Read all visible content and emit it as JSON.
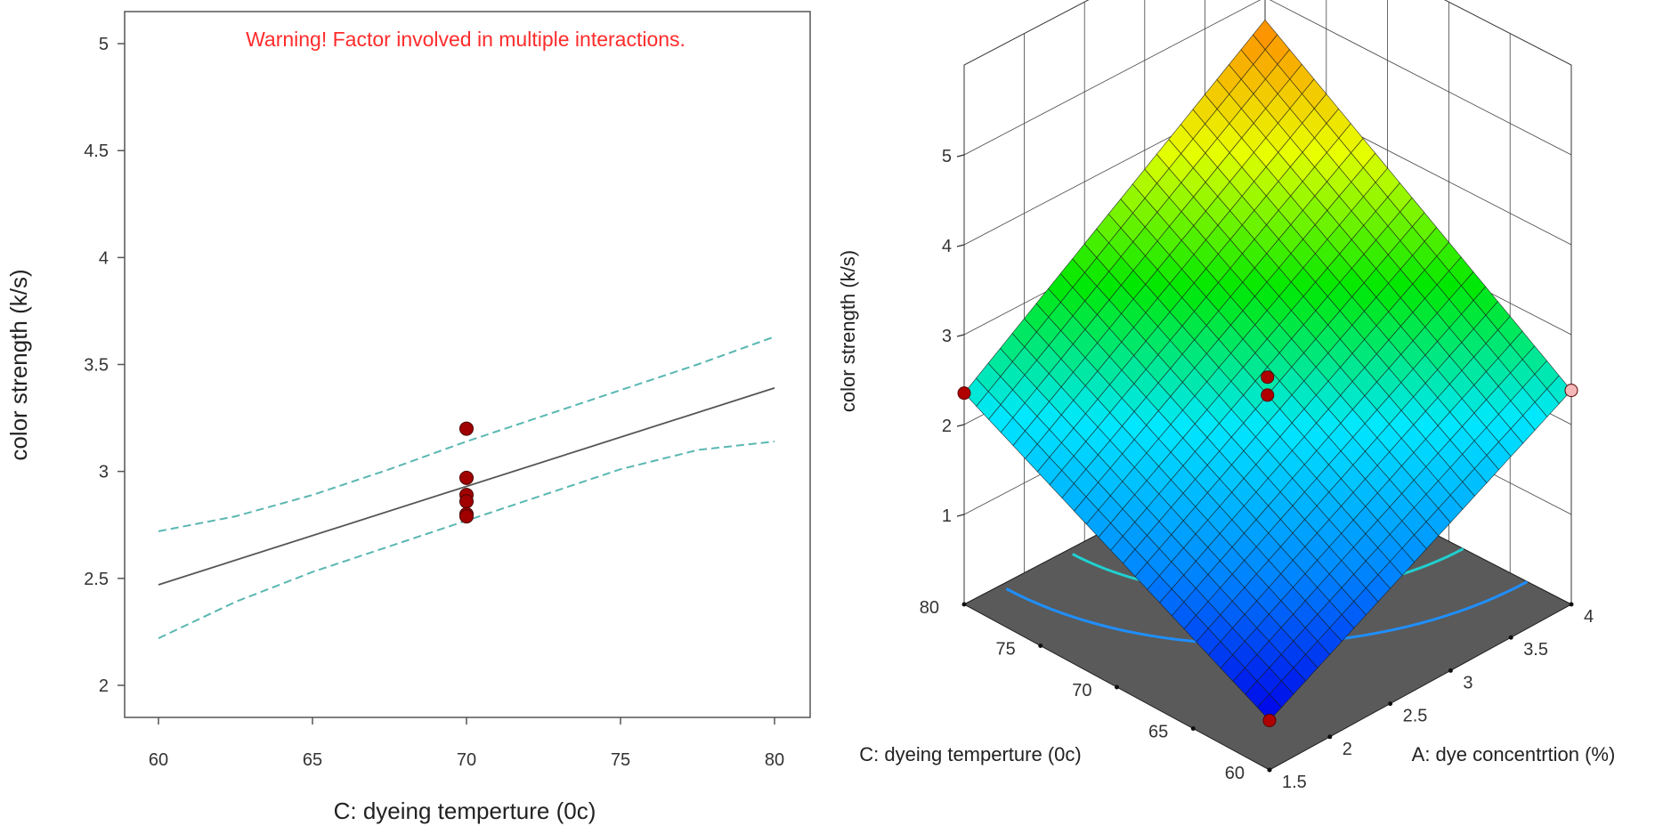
{
  "chart_data": [
    {
      "type": "line",
      "warning": "Warning! Factor involved in multiple interactions.",
      "xlabel": "C: dyeing temperture (0c)",
      "ylabel": "color strength (k/s)",
      "xlim": [
        60,
        80
      ],
      "ylim": [
        1.85,
        5.15
      ],
      "xticks": [
        "60",
        "65",
        "70",
        "75",
        "80"
      ],
      "yticks": [
        "2",
        "2.5",
        "3",
        "3.5",
        "4",
        "4.5",
        "5"
      ],
      "series": [
        {
          "role": "prediction",
          "x": [
            60,
            80
          ],
          "y": [
            2.47,
            3.39
          ],
          "style": "solid",
          "color": "#555555"
        },
        {
          "role": "upper-ci",
          "x": [
            60,
            62.5,
            65,
            67.5,
            70,
            72.5,
            75,
            77.5,
            80
          ],
          "y": [
            2.72,
            2.79,
            2.89,
            3.01,
            3.14,
            3.26,
            3.38,
            3.5,
            3.63
          ],
          "style": "dashed",
          "color": "#5ab7b2"
        },
        {
          "role": "lower-ci",
          "x": [
            60,
            62.5,
            65,
            67.5,
            70,
            72.5,
            75,
            77.5,
            80
          ],
          "y": [
            2.22,
            2.39,
            2.53,
            2.65,
            2.77,
            2.89,
            3.01,
            3.1,
            3.14
          ],
          "style": "dashed",
          "color": "#5ab7b2"
        }
      ],
      "points": {
        "x": [
          70,
          70,
          70,
          70,
          70,
          70
        ],
        "y": [
          3.2,
          2.97,
          2.89,
          2.86,
          2.8,
          2.79
        ],
        "color": "#a00000"
      },
      "grid": false
    },
    {
      "type": "surface",
      "zlabel": "color strength (k/s)",
      "xlabel": "A: dye concentrtion (%)",
      "ylabel": "C: dyeing temperture (0c)",
      "xlim": [
        1.5,
        4
      ],
      "ylim": [
        60,
        80
      ],
      "zlim": [
        0,
        5
      ],
      "xticks": [
        "1.5",
        "2",
        "2.5",
        "3",
        "3.5",
        "4"
      ],
      "yticks": [
        "60",
        "65",
        "70",
        "75",
        "80"
      ],
      "zticks": [
        "1",
        "2",
        "3",
        "4",
        "5"
      ],
      "surface_corners": [
        {
          "x": 1.5,
          "y": 60,
          "z": 0.55
        },
        {
          "x": 4,
          "y": 60,
          "z": 2.38
        },
        {
          "x": 4,
          "y": 80,
          "z": 4.75
        },
        {
          "x": 1.5,
          "y": 80,
          "z": 2.35
        }
      ],
      "points": [
        {
          "x": 2.75,
          "y": 70,
          "z": 2.55
        },
        {
          "x": 2.75,
          "y": 70,
          "z": 2.35
        },
        {
          "x": 1.5,
          "y": 80,
          "z": 2.35
        },
        {
          "x": 4,
          "y": 60,
          "z": 2.38
        },
        {
          "x": 1.5,
          "y": 60,
          "z": 0.55
        }
      ],
      "colormap": [
        "#0000e8",
        "#0088ff",
        "#00e8ff",
        "#00e800",
        "#e8ff00",
        "#ff8800"
      ],
      "contour_levels": [
        1.5,
        2.0,
        2.5,
        3.0
      ],
      "contour_colors": [
        "#1f8fff",
        "#20d0d0",
        "#33cc33",
        "#b8e020"
      ],
      "floor_color": "#5a5a5a",
      "grid": true
    }
  ]
}
